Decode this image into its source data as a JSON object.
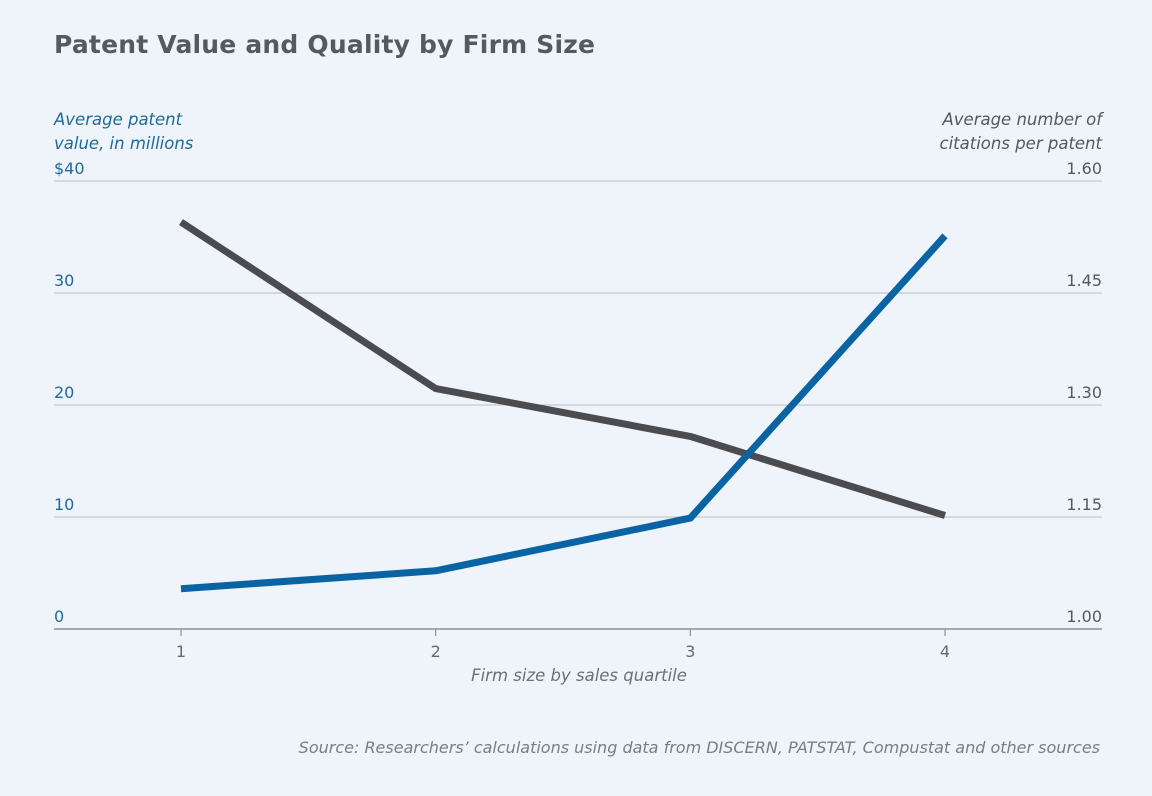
{
  "title": "Patent Value and Quality by Firm Size",
  "left_axis_title_lines": [
    "Average patent",
    "value, in millions"
  ],
  "right_axis_title_lines": [
    "Average number of",
    "citations per patent"
  ],
  "x_axis_title": "Firm size by sales quartile",
  "source": "Source: Researchers’ calculations using data from DISCERN, PATSTAT, Compustat and other sources",
  "colors": {
    "patent_value_line": "#0a63a3",
    "citations_line": "#4b4c50",
    "left_ticks": "#1f6a9a",
    "right_ticks": "#55595e",
    "x_ticks": "#666a6f",
    "grid": "#c2c9d0",
    "baseline": "#8a9097"
  },
  "chart_data": {
    "type": "line",
    "x": [
      1,
      2,
      3,
      4
    ],
    "x_tick_labels": [
      "1",
      "2",
      "3",
      "4"
    ],
    "xlim": [
      0.5,
      4.6
    ],
    "y_left": {
      "ylim": [
        0,
        40
      ],
      "ticks": [
        0,
        10,
        20,
        30,
        40
      ],
      "tick_labels": [
        "0",
        "10",
        "20",
        "30",
        "$40"
      ]
    },
    "y_right": {
      "ylim": [
        1.0,
        1.6
      ],
      "ticks": [
        1.0,
        1.15,
        1.3,
        1.45,
        1.6
      ],
      "tick_labels": [
        "1.00",
        "1.15",
        "1.30",
        "1.45",
        "1.60"
      ]
    },
    "series": [
      {
        "axis": "left",
        "color_key": "patent_value_line",
        "values": [
          3.6,
          5.2,
          9.9,
          35.1
        ]
      },
      {
        "axis": "right",
        "color_key": "citations_line",
        "values": [
          1.545,
          1.322,
          1.258,
          1.152
        ]
      }
    ],
    "grid": true,
    "legend": "none"
  }
}
